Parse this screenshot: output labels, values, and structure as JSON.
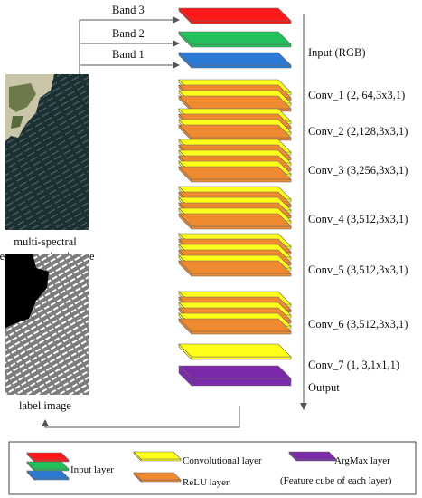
{
  "bands": [
    "Band 3",
    "Band 2",
    "Band 1"
  ],
  "input_label": "Input (RGB)",
  "layers": [
    {
      "label": "Conv_1 (2,  64,3x3,1)",
      "count": 2
    },
    {
      "label": "Conv_2 (2,128,3x3,1)",
      "count": 2
    },
    {
      "label": "Conv_3 (3,256,3x3,1)",
      "count": 3
    },
    {
      "label": "Conv_4 (3,512,3x3,1)",
      "count": 3
    },
    {
      "label": "Conv_5 (3,512,3x3,1)",
      "count": 3
    },
    {
      "label": "Conv_6 (3,512,3x3,1)",
      "count": 3
    },
    {
      "label": "Conv_7 (1,    3,1x1,1)",
      "count": 1
    }
  ],
  "output_label": "Output",
  "image_captions": {
    "multispectral_line1": "multi-spectral",
    "multispectral_line2": "remote sensing image",
    "label": "label image"
  },
  "legend": {
    "input": "Input layer",
    "conv": "Convolutional layer",
    "relu": "ReLU layer",
    "argmax": "ArgMax layer",
    "note": "(Feature cube of each layer)"
  },
  "colors": {
    "band3": "#ff1a1a",
    "band2": "#22c05a",
    "band1": "#2a7ad6",
    "conv": "#ffff1a",
    "relu": "#f08a30",
    "argmax": "#7a2aa8",
    "edge": "#666666"
  }
}
